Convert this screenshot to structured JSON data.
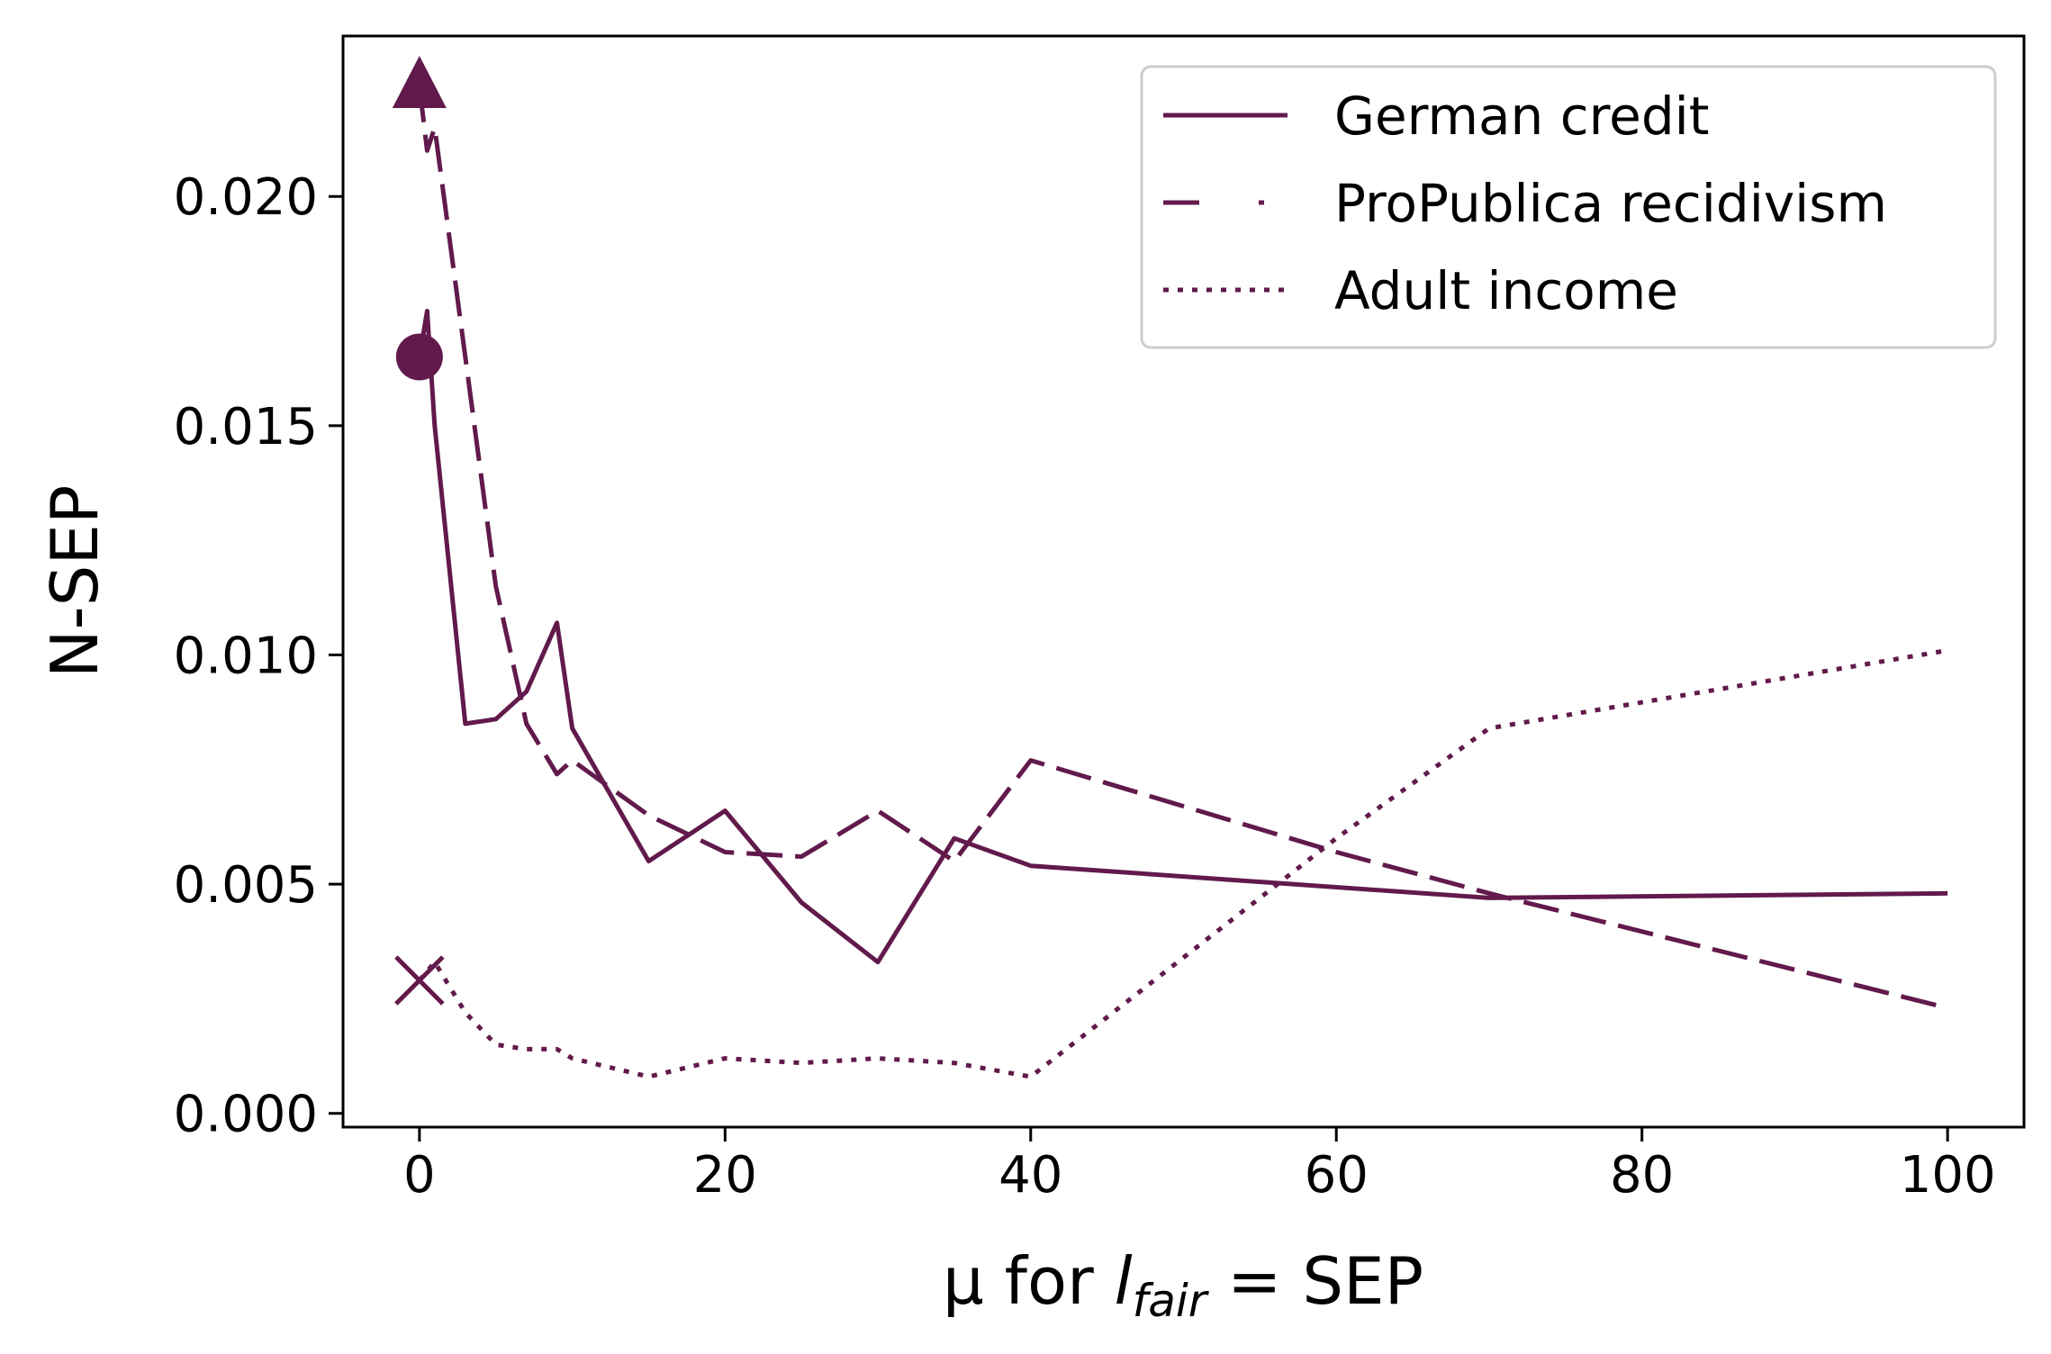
{
  "chart_data": {
    "type": "line",
    "xlabel": {
      "prefix": "μ for ",
      "var": "l",
      "sub": "fair",
      "suffix": " = SEP"
    },
    "ylabel": "N-SEP",
    "xlim": [
      -5,
      105
    ],
    "ylim": [
      -0.0003,
      0.0235
    ],
    "xticks": [
      0,
      20,
      40,
      60,
      80,
      100
    ],
    "yticks": [
      0.0,
      0.005,
      0.01,
      0.015,
      0.02
    ],
    "ytick_decimals": 3,
    "grid": false,
    "legend_position": "top-right",
    "line_color": "#611a4b",
    "series": [
      {
        "name": "German credit",
        "style": "solid",
        "x": [
          0,
          0.5,
          1,
          3,
          5,
          7,
          9,
          10,
          15,
          20,
          25,
          30,
          35,
          40,
          70,
          100
        ],
        "y": [
          0.0165,
          0.0175,
          0.015,
          0.0085,
          0.0086,
          0.0092,
          0.0107,
          0.0084,
          0.0055,
          0.0066,
          0.0046,
          0.0033,
          0.006,
          0.0054,
          0.0047,
          0.0048
        ],
        "marker": {
          "shape": "circle",
          "x": 0,
          "y": 0.0165
        }
      },
      {
        "name": "ProPublica recidivism",
        "style": "dashdot",
        "x": [
          0,
          0.5,
          1,
          3,
          5,
          7,
          9,
          10,
          15,
          20,
          25,
          30,
          35,
          40,
          60,
          70,
          100
        ],
        "y": [
          0.0224,
          0.021,
          0.0215,
          0.0165,
          0.0115,
          0.0085,
          0.0074,
          0.0077,
          0.0065,
          0.0057,
          0.0056,
          0.0066,
          0.0055,
          0.0077,
          0.0057,
          0.0048,
          0.0023
        ],
        "marker": {
          "shape": "triangle",
          "x": 0,
          "y": 0.0224
        }
      },
      {
        "name": "Adult income",
        "style": "dotted",
        "x": [
          0,
          1,
          3,
          5,
          7,
          9,
          10,
          15,
          20,
          25,
          30,
          35,
          40,
          60,
          70,
          100
        ],
        "y": [
          0.0029,
          0.0033,
          0.0022,
          0.0015,
          0.0014,
          0.0014,
          0.0012,
          0.0008,
          0.0012,
          0.0011,
          0.0012,
          0.0011,
          0.0008,
          0.006,
          0.0084,
          0.0101
        ],
        "marker": {
          "shape": "x",
          "x": 0,
          "y": 0.0029
        }
      }
    ]
  }
}
